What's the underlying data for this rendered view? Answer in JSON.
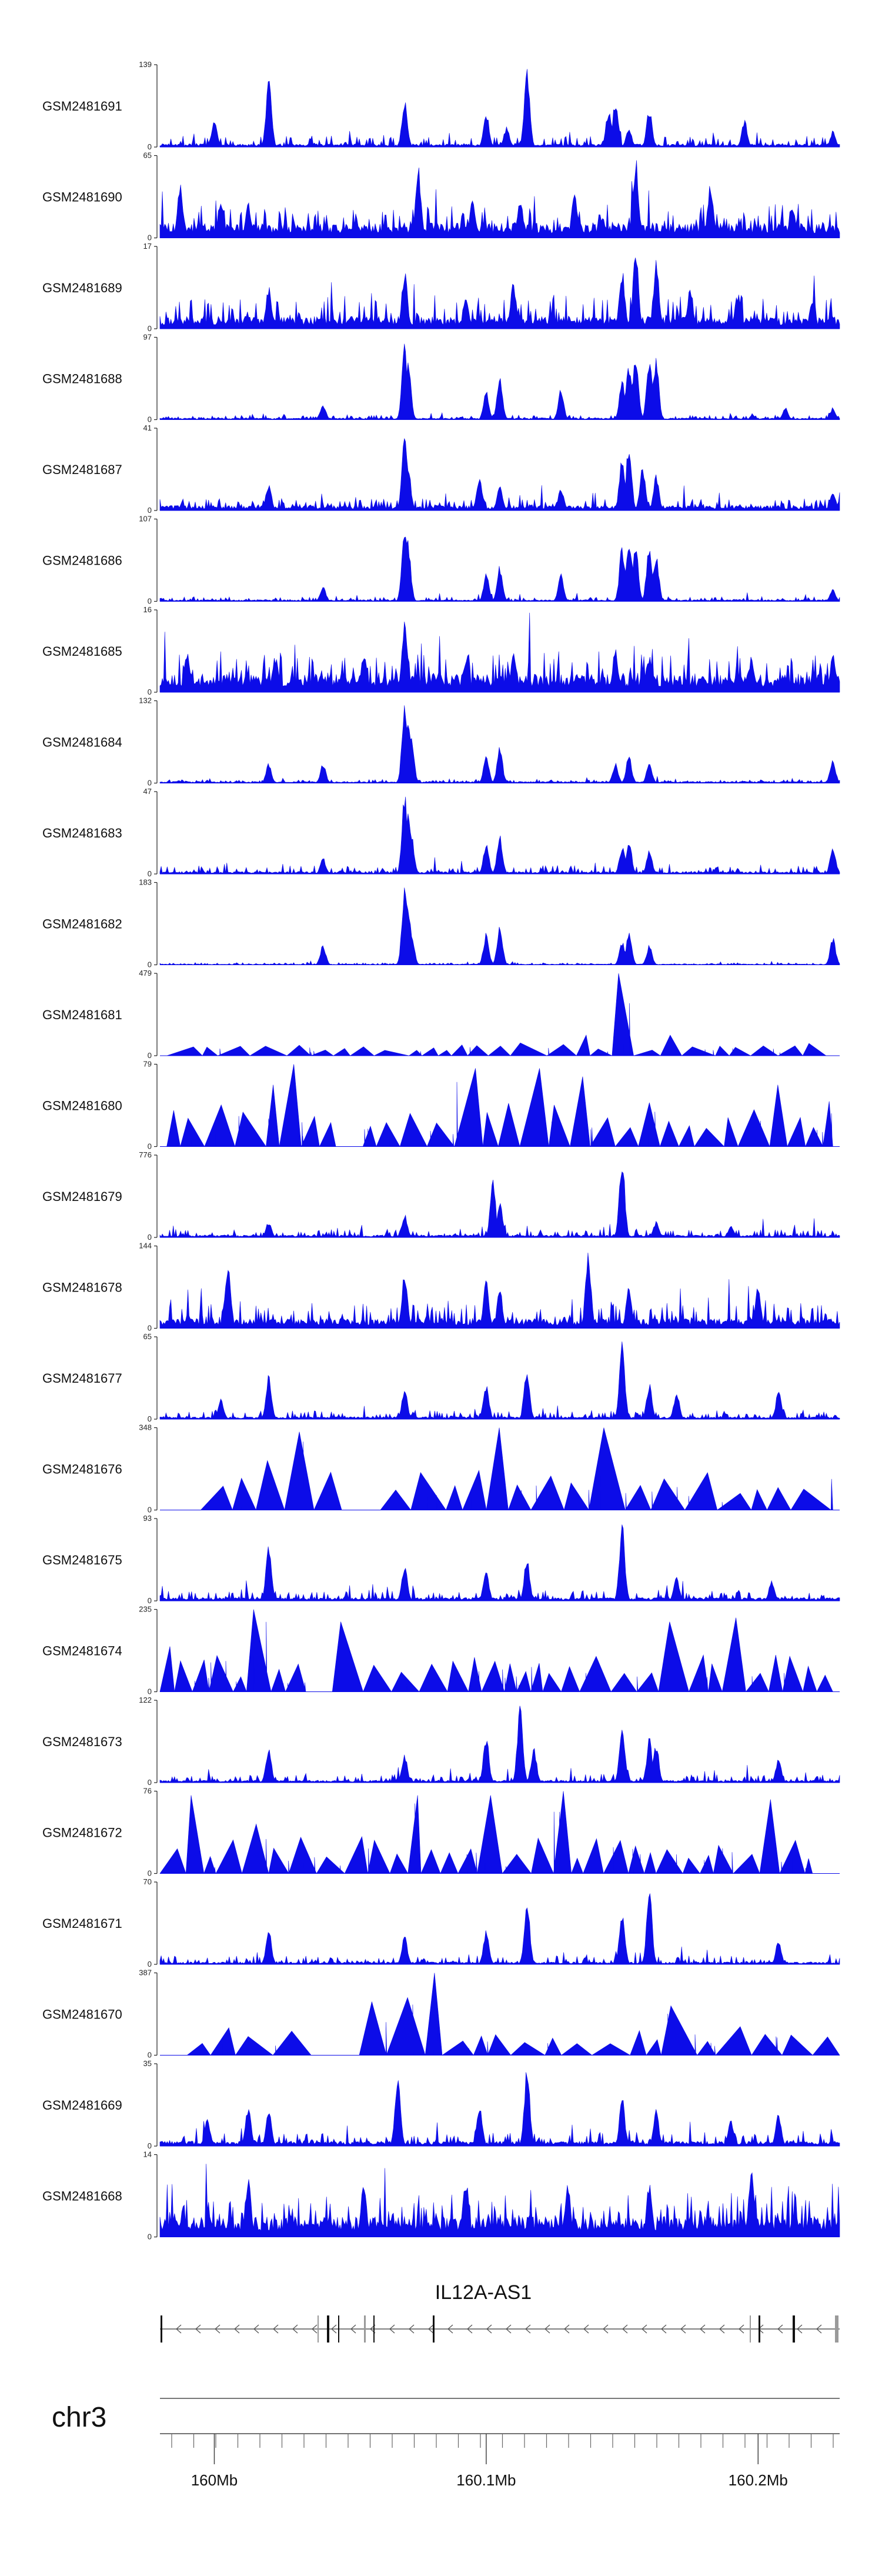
{
  "colors": {
    "signal": "#0c0ce8",
    "axis": "#222222",
    "gene": "#555555",
    "exon": "#111111"
  },
  "chart_data": {
    "type": "area",
    "title": "",
    "chromosome": "chr3",
    "gene": "IL12A-AS1",
    "xlabel": "",
    "ylabel": "",
    "xlim": [
      159.98,
      160.23
    ],
    "x_ticks": [
      {
        "value": 160.0,
        "label": "160Mb"
      },
      {
        "value": 160.1,
        "label": "160.1Mb"
      },
      {
        "value": 160.2,
        "label": "160.2Mb"
      }
    ],
    "series": [
      {
        "name": "GSM2481691",
        "max": 139,
        "style": "dense",
        "base": 0.04,
        "noise": 0.1,
        "peaks": [
          [
            0.08,
            0.35
          ],
          [
            0.16,
            0.85
          ],
          [
            0.36,
            0.6
          ],
          [
            0.48,
            0.45
          ],
          [
            0.51,
            0.25
          ],
          [
            0.54,
            1.0
          ],
          [
            0.66,
            0.45
          ],
          [
            0.67,
            0.6
          ],
          [
            0.69,
            0.25
          ],
          [
            0.72,
            0.5
          ],
          [
            0.86,
            0.35
          ],
          [
            0.99,
            0.2
          ]
        ]
      },
      {
        "name": "GSM2481690",
        "max": 65,
        "style": "dense",
        "base": 0.18,
        "noise": 0.25,
        "peaks": [
          [
            0.03,
            0.7
          ],
          [
            0.09,
            0.5
          ],
          [
            0.13,
            0.45
          ],
          [
            0.38,
            0.9
          ],
          [
            0.46,
            0.5
          ],
          [
            0.53,
            0.5
          ],
          [
            0.61,
            0.6
          ],
          [
            0.7,
            1.0
          ],
          [
            0.81,
            0.7
          ],
          [
            0.93,
            0.45
          ]
        ]
      },
      {
        "name": "GSM2481689",
        "max": 17,
        "style": "dense",
        "base": 0.15,
        "noise": 0.3,
        "peaks": [
          [
            0.16,
            0.55
          ],
          [
            0.36,
            0.75
          ],
          [
            0.45,
            0.45
          ],
          [
            0.52,
            0.6
          ],
          [
            0.68,
            0.75
          ],
          [
            0.7,
            1.0
          ],
          [
            0.73,
            0.85
          ],
          [
            0.78,
            0.55
          ],
          [
            0.85,
            0.45
          ],
          [
            0.96,
            0.4
          ]
        ]
      },
      {
        "name": "GSM2481688",
        "max": 97,
        "style": "dense",
        "base": 0.02,
        "noise": 0.04,
        "peaks": [
          [
            0.24,
            0.2
          ],
          [
            0.36,
            1.0
          ],
          [
            0.365,
            0.8
          ],
          [
            0.48,
            0.35
          ],
          [
            0.5,
            0.55
          ],
          [
            0.59,
            0.4
          ],
          [
            0.68,
            0.5
          ],
          [
            0.69,
            0.7
          ],
          [
            0.7,
            0.8
          ],
          [
            0.72,
            0.8
          ],
          [
            0.73,
            0.75
          ],
          [
            0.92,
            0.15
          ],
          [
            0.99,
            0.15
          ]
        ]
      },
      {
        "name": "GSM2481687",
        "max": 41,
        "style": "dense",
        "base": 0.06,
        "noise": 0.1,
        "peaks": [
          [
            0.16,
            0.35
          ],
          [
            0.36,
            1.0
          ],
          [
            0.365,
            0.6
          ],
          [
            0.47,
            0.45
          ],
          [
            0.5,
            0.35
          ],
          [
            0.59,
            0.3
          ],
          [
            0.68,
            0.7
          ],
          [
            0.69,
            0.85
          ],
          [
            0.71,
            0.55
          ],
          [
            0.73,
            0.45
          ],
          [
            0.99,
            0.25
          ]
        ]
      },
      {
        "name": "GSM2481686",
        "max": 107,
        "style": "dense",
        "base": 0.02,
        "noise": 0.04,
        "peaks": [
          [
            0.24,
            0.2
          ],
          [
            0.36,
            1.0
          ],
          [
            0.365,
            0.75
          ],
          [
            0.48,
            0.35
          ],
          [
            0.5,
            0.45
          ],
          [
            0.59,
            0.35
          ],
          [
            0.68,
            0.7
          ],
          [
            0.69,
            0.85
          ],
          [
            0.7,
            0.7
          ],
          [
            0.72,
            0.75
          ],
          [
            0.73,
            0.6
          ],
          [
            0.99,
            0.15
          ]
        ]
      },
      {
        "name": "GSM2481685",
        "max": 16,
        "style": "dense",
        "base": 0.22,
        "noise": 0.3,
        "peaks": [
          [
            0.04,
            0.55
          ],
          [
            0.17,
            0.45
          ],
          [
            0.3,
            0.5
          ],
          [
            0.36,
            0.9
          ],
          [
            0.45,
            0.45
          ],
          [
            0.52,
            0.5
          ],
          [
            0.67,
            0.55
          ],
          [
            0.72,
            0.45
          ],
          [
            0.87,
            0.45
          ],
          [
            0.99,
            0.5
          ]
        ]
      },
      {
        "name": "GSM2481684",
        "max": 132,
        "style": "dense",
        "base": 0.02,
        "noise": 0.03,
        "peaks": [
          [
            0.16,
            0.25
          ],
          [
            0.24,
            0.25
          ],
          [
            0.36,
            1.0
          ],
          [
            0.365,
            0.8
          ],
          [
            0.37,
            0.55
          ],
          [
            0.48,
            0.35
          ],
          [
            0.5,
            0.45
          ],
          [
            0.67,
            0.25
          ],
          [
            0.69,
            0.35
          ],
          [
            0.72,
            0.25
          ],
          [
            0.99,
            0.3
          ]
        ]
      },
      {
        "name": "GSM2481683",
        "max": 47,
        "style": "dense",
        "base": 0.03,
        "noise": 0.08,
        "peaks": [
          [
            0.24,
            0.2
          ],
          [
            0.36,
            1.0
          ],
          [
            0.365,
            0.8
          ],
          [
            0.37,
            0.5
          ],
          [
            0.48,
            0.4
          ],
          [
            0.5,
            0.5
          ],
          [
            0.68,
            0.35
          ],
          [
            0.69,
            0.45
          ],
          [
            0.72,
            0.3
          ],
          [
            0.99,
            0.35
          ]
        ]
      },
      {
        "name": "GSM2481682",
        "max": 183,
        "style": "dense",
        "base": 0.01,
        "noise": 0.02,
        "peaks": [
          [
            0.24,
            0.25
          ],
          [
            0.36,
            1.0
          ],
          [
            0.365,
            0.75
          ],
          [
            0.37,
            0.45
          ],
          [
            0.48,
            0.4
          ],
          [
            0.5,
            0.5
          ],
          [
            0.68,
            0.3
          ],
          [
            0.69,
            0.4
          ],
          [
            0.72,
            0.25
          ],
          [
            0.99,
            0.35
          ]
        ]
      },
      {
        "name": "GSM2481681",
        "max": 479,
        "style": "triangles",
        "start": 0.01,
        "end": 0.98,
        "n": 26,
        "height": 0.16,
        "peaks": [
          [
            0.68,
            1.0
          ],
          [
            0.75,
            0.25
          ],
          [
            0.63,
            0.25
          ]
        ]
      },
      {
        "name": "GSM2481680",
        "max": 79,
        "style": "triangles",
        "start": 0.01,
        "end": 0.99,
        "n": 30,
        "height": 0.55,
        "gaps": [
          [
            0.26,
            0.3
          ]
        ],
        "peaks": [
          [
            0.2,
            1.0
          ],
          [
            0.17,
            0.75
          ],
          [
            0.46,
            0.95
          ],
          [
            0.53,
            0.95
          ],
          [
            0.62,
            0.85
          ],
          [
            0.9,
            0.75
          ]
        ]
      },
      {
        "name": "GSM2481679",
        "max": 776,
        "style": "dense",
        "base": 0.03,
        "noise": 0.08,
        "peaks": [
          [
            0.16,
            0.2
          ],
          [
            0.36,
            0.3
          ],
          [
            0.49,
            0.7
          ],
          [
            0.5,
            0.45
          ],
          [
            0.68,
            1.0
          ],
          [
            0.73,
            0.2
          ],
          [
            0.84,
            0.15
          ]
        ]
      },
      {
        "name": "GSM2481678",
        "max": 144,
        "style": "dense",
        "base": 0.12,
        "noise": 0.25,
        "peaks": [
          [
            0.1,
            0.8
          ],
          [
            0.36,
            0.7
          ],
          [
            0.48,
            0.6
          ],
          [
            0.5,
            0.5
          ],
          [
            0.63,
            1.0
          ],
          [
            0.69,
            0.55
          ],
          [
            0.88,
            0.55
          ]
        ]
      },
      {
        "name": "GSM2481677",
        "max": 65,
        "style": "dense",
        "base": 0.03,
        "noise": 0.08,
        "peaks": [
          [
            0.09,
            0.25
          ],
          [
            0.16,
            0.55
          ],
          [
            0.36,
            0.4
          ],
          [
            0.48,
            0.45
          ],
          [
            0.54,
            0.65
          ],
          [
            0.68,
            1.0
          ],
          [
            0.72,
            0.45
          ],
          [
            0.76,
            0.35
          ],
          [
            0.91,
            0.35
          ]
        ]
      },
      {
        "name": "GSM2481676",
        "max": 348,
        "style": "triangles",
        "start": 0.06,
        "end": 0.99,
        "n": 22,
        "height": 0.5,
        "gaps": [
          [
            0.25,
            0.3
          ]
        ],
        "peaks": [
          [
            0.21,
            0.95
          ],
          [
            0.49,
            1.0
          ],
          [
            0.68,
            1.0
          ],
          [
            0.17,
            0.6
          ]
        ]
      },
      {
        "name": "GSM2481675",
        "max": 93,
        "style": "dense",
        "base": 0.04,
        "noise": 0.1,
        "peaks": [
          [
            0.16,
            0.7
          ],
          [
            0.36,
            0.45
          ],
          [
            0.48,
            0.4
          ],
          [
            0.54,
            0.55
          ],
          [
            0.68,
            1.0
          ],
          [
            0.76,
            0.3
          ],
          [
            0.9,
            0.25
          ]
        ]
      },
      {
        "name": "GSM2481674",
        "max": 235,
        "style": "triangles",
        "start": 0.0,
        "end": 0.99,
        "n": 32,
        "height": 0.45,
        "gaps": [
          [
            0.2,
            0.25
          ]
        ],
        "peaks": [
          [
            0.15,
            1.0
          ],
          [
            0.26,
            0.85
          ],
          [
            0.75,
            0.85
          ],
          [
            0.86,
            0.9
          ],
          [
            0.02,
            0.55
          ]
        ]
      },
      {
        "name": "GSM2481673",
        "max": 122,
        "style": "dense",
        "base": 0.03,
        "noise": 0.08,
        "peaks": [
          [
            0.16,
            0.45
          ],
          [
            0.36,
            0.35
          ],
          [
            0.48,
            0.6
          ],
          [
            0.53,
            1.0
          ],
          [
            0.55,
            0.45
          ],
          [
            0.68,
            0.75
          ],
          [
            0.72,
            0.55
          ],
          [
            0.73,
            0.5
          ],
          [
            0.91,
            0.3
          ]
        ]
      },
      {
        "name": "GSM2481672",
        "max": 76,
        "style": "triangles",
        "start": 0.0,
        "end": 0.96,
        "n": 32,
        "height": 0.45,
        "peaks": [
          [
            0.04,
            0.95
          ],
          [
            0.38,
            0.95
          ],
          [
            0.49,
            0.95
          ],
          [
            0.59,
            1.0
          ],
          [
            0.89,
            0.9
          ],
          [
            0.13,
            0.6
          ]
        ]
      },
      {
        "name": "GSM2481671",
        "max": 70,
        "style": "dense",
        "base": 0.03,
        "noise": 0.08,
        "peaks": [
          [
            0.16,
            0.45
          ],
          [
            0.36,
            0.35
          ],
          [
            0.48,
            0.45
          ],
          [
            0.54,
            0.85
          ],
          [
            0.68,
            0.65
          ],
          [
            0.72,
            1.0
          ],
          [
            0.91,
            0.3
          ]
        ]
      },
      {
        "name": "GSM2481670",
        "max": 387,
        "style": "triangles",
        "start": 0.04,
        "end": 1.0,
        "n": 24,
        "height": 0.35,
        "gaps": [
          [
            0.24,
            0.28
          ]
        ],
        "peaks": [
          [
            0.3,
            0.65
          ],
          [
            0.38,
            0.7
          ],
          [
            0.4,
            1.0
          ],
          [
            0.75,
            0.6
          ],
          [
            0.51,
            0.25
          ]
        ]
      },
      {
        "name": "GSM2481669",
        "max": 35,
        "style": "dense",
        "base": 0.06,
        "noise": 0.12,
        "peaks": [
          [
            0.07,
            0.35
          ],
          [
            0.13,
            0.5
          ],
          [
            0.16,
            0.45
          ],
          [
            0.35,
            1.0
          ],
          [
            0.47,
            0.55
          ],
          [
            0.54,
            1.0
          ],
          [
            0.68,
            0.6
          ],
          [
            0.73,
            0.45
          ],
          [
            0.84,
            0.35
          ],
          [
            0.91,
            0.4
          ]
        ]
      },
      {
        "name": "GSM2481668",
        "max": 14,
        "style": "dense",
        "base": 0.25,
        "noise": 0.3,
        "peaks": [
          [
            0.13,
            0.8
          ],
          [
            0.3,
            0.7
          ],
          [
            0.45,
            0.75
          ],
          [
            0.6,
            0.7
          ],
          [
            0.72,
            0.7
          ],
          [
            0.87,
            0.9
          ]
        ]
      }
    ]
  }
}
